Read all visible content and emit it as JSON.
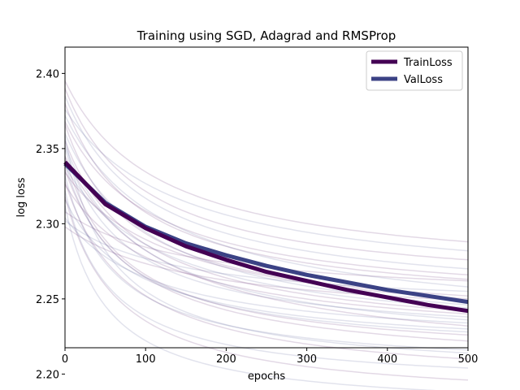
{
  "chart_data": {
    "type": "line",
    "title": "Training using SGD, Adagrad and RMSProp",
    "xlabel": "epochs",
    "ylabel": "log loss",
    "xlim": [
      0,
      500
    ],
    "ylim": [
      2.2175,
      2.4175
    ],
    "xticks": [
      0,
      100,
      200,
      300,
      400,
      500
    ],
    "yticks": [
      2.2,
      2.25,
      2.3,
      2.35,
      2.4
    ],
    "grid": false,
    "legend_position": "top-right",
    "x": [
      0,
      50,
      100,
      150,
      200,
      250,
      300,
      350,
      400,
      450,
      500
    ],
    "series": [
      {
        "name": "TrainLoss",
        "color": "#440154",
        "values": [
          2.341,
          2.313,
          2.297,
          2.285,
          2.276,
          2.268,
          2.262,
          2.256,
          2.251,
          2.246,
          2.242
        ]
      },
      {
        "name": "ValLoss",
        "color": "#3b4285",
        "values": [
          2.34,
          2.314,
          2.298,
          2.287,
          2.279,
          2.272,
          2.266,
          2.261,
          2.256,
          2.252,
          2.248
        ]
      }
    ],
    "background_runs": {
      "colors": [
        "#440154",
        "#3b4285"
      ],
      "opacity": 0.15,
      "curves": [
        {
          "start": 2.395,
          "end": 2.288,
          "k": 4.2
        },
        {
          "start": 2.385,
          "end": 2.27,
          "k": 4.8
        },
        {
          "start": 2.38,
          "end": 2.263,
          "k": 5.5
        },
        {
          "start": 2.372,
          "end": 2.258,
          "k": 3.8
        },
        {
          "start": 2.366,
          "end": 2.252,
          "k": 6.0
        },
        {
          "start": 2.36,
          "end": 2.246,
          "k": 4.4
        },
        {
          "start": 2.355,
          "end": 2.242,
          "k": 5.2
        },
        {
          "start": 2.35,
          "end": 2.238,
          "k": 6.6
        },
        {
          "start": 2.345,
          "end": 2.232,
          "k": 4.0
        },
        {
          "start": 2.34,
          "end": 2.228,
          "k": 7.2
        },
        {
          "start": 2.336,
          "end": 2.222,
          "k": 5.8
        },
        {
          "start": 2.332,
          "end": 2.216,
          "k": 8.0
        },
        {
          "start": 2.328,
          "end": 2.21,
          "k": 6.2
        },
        {
          "start": 2.322,
          "end": 2.204,
          "k": 8.8
        },
        {
          "start": 2.318,
          "end": 2.196,
          "k": 7.4
        },
        {
          "start": 2.312,
          "end": 2.188,
          "k": 9.5
        },
        {
          "start": 2.308,
          "end": 2.262,
          "k": 3.2
        },
        {
          "start": 2.302,
          "end": 2.255,
          "k": 3.6
        },
        {
          "start": 2.298,
          "end": 2.249,
          "k": 3.0
        },
        {
          "start": 2.376,
          "end": 2.282,
          "k": 3.4
        },
        {
          "start": 2.368,
          "end": 2.266,
          "k": 4.6
        },
        {
          "start": 2.352,
          "end": 2.236,
          "k": 5.0
        },
        {
          "start": 2.344,
          "end": 2.226,
          "k": 6.8
        },
        {
          "start": 2.338,
          "end": 2.244,
          "k": 3.9
        },
        {
          "start": 2.326,
          "end": 2.24,
          "k": 4.1
        },
        {
          "start": 2.316,
          "end": 2.23,
          "k": 5.4
        },
        {
          "start": 2.39,
          "end": 2.276,
          "k": 5.0
        },
        {
          "start": 2.358,
          "end": 2.214,
          "k": 9.0
        },
        {
          "start": 2.334,
          "end": 2.25,
          "k": 3.5
        },
        {
          "start": 2.304,
          "end": 2.234,
          "k": 4.3
        }
      ]
    }
  }
}
